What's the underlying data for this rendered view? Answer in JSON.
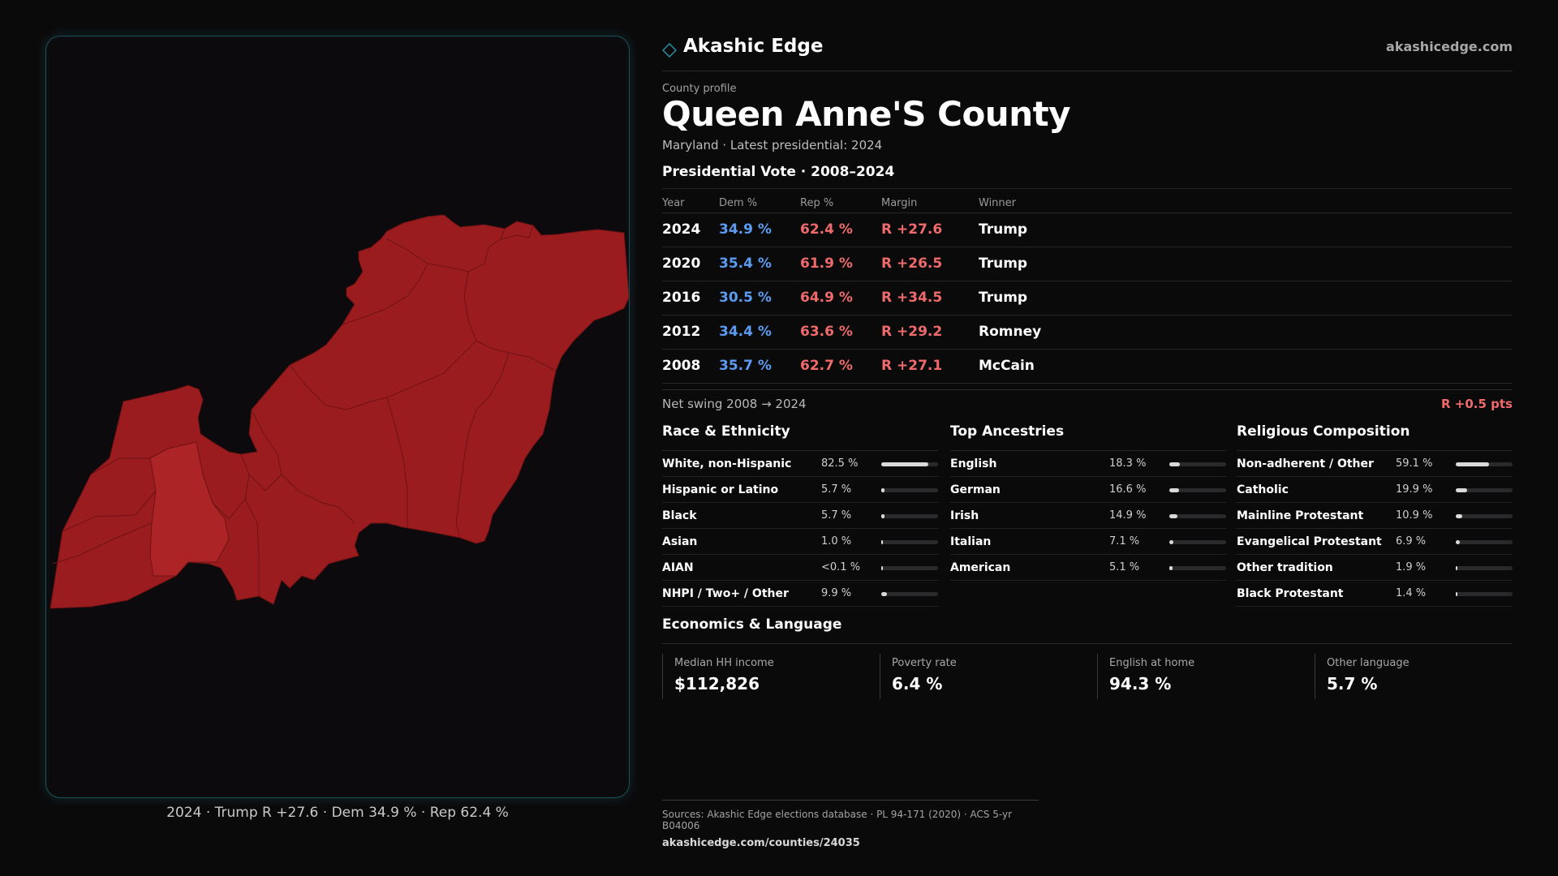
{
  "header": {
    "brand": "Akashic Edge",
    "site": "akashicedge.com",
    "logo_icon": "diamond-icon"
  },
  "profile": {
    "kicker": "County profile",
    "title": "Queen Anne'S County",
    "subtitle": "Maryland · Latest presidential: 2024"
  },
  "vote": {
    "heading": "Presidential Vote · 2008–2024",
    "columns": {
      "year": "Year",
      "dem": "Dem %",
      "rep": "Rep %",
      "margin": "Margin",
      "winner": "Winner"
    },
    "rows": [
      {
        "year": "2024",
        "dem": "34.9 %",
        "rep": "62.4 %",
        "margin": "R +27.6",
        "winner": "Trump"
      },
      {
        "year": "2020",
        "dem": "35.4 %",
        "rep": "61.9 %",
        "margin": "R +26.5",
        "winner": "Trump"
      },
      {
        "year": "2016",
        "dem": "30.5 %",
        "rep": "64.9 %",
        "margin": "R +34.5",
        "winner": "Trump"
      },
      {
        "year": "2012",
        "dem": "34.4 %",
        "rep": "63.6 %",
        "margin": "R +29.2",
        "winner": "Romney"
      },
      {
        "year": "2008",
        "dem": "35.7 %",
        "rep": "62.7 %",
        "margin": "R +27.1",
        "winner": "McCain"
      }
    ],
    "swing_label": "Net swing 2008 → 2024",
    "swing_value": "R +0.5 pts"
  },
  "race": {
    "heading": "Race & Ethnicity",
    "rows": [
      {
        "label": "White, non-Hispanic",
        "value": "82.5 %",
        "share": 0.825
      },
      {
        "label": "Hispanic or Latino",
        "value": "5.7 %",
        "share": 0.057
      },
      {
        "label": "Black",
        "value": "5.7 %",
        "share": 0.057
      },
      {
        "label": "Asian",
        "value": "1.0 %",
        "share": 0.01
      },
      {
        "label": "AIAN",
        "value": "<0.1 %",
        "share": 0.001
      },
      {
        "label": "NHPI / Two+ / Other",
        "value": "9.9 %",
        "share": 0.099
      }
    ]
  },
  "ancestry": {
    "heading": "Top Ancestries",
    "rows": [
      {
        "label": "English",
        "value": "18.3 %",
        "share": 0.183
      },
      {
        "label": "German",
        "value": "16.6 %",
        "share": 0.166
      },
      {
        "label": "Irish",
        "value": "14.9 %",
        "share": 0.149
      },
      {
        "label": "Italian",
        "value": "7.1 %",
        "share": 0.071
      },
      {
        "label": "American",
        "value": "5.1 %",
        "share": 0.051
      }
    ]
  },
  "religion": {
    "heading": "Religious Composition",
    "rows": [
      {
        "label": "Non-adherent / Other",
        "value": "59.1 %",
        "share": 0.591
      },
      {
        "label": "Catholic",
        "value": "19.9 %",
        "share": 0.199
      },
      {
        "label": "Mainline Protestant",
        "value": "10.9 %",
        "share": 0.109
      },
      {
        "label": "Evangelical Protestant",
        "value": "6.9 %",
        "share": 0.069
      },
      {
        "label": "Other tradition",
        "value": "1.9 %",
        "share": 0.019
      },
      {
        "label": "Black Protestant",
        "value": "1.4 %",
        "share": 0.014
      }
    ]
  },
  "economics": {
    "heading": "Economics & Language",
    "items": [
      {
        "label": "Median HH income",
        "value": "$112,826"
      },
      {
        "label": "Poverty rate",
        "value": "6.4 %"
      },
      {
        "label": "English at home",
        "value": "94.3 %"
      },
      {
        "label": "Other language",
        "value": "5.7 %"
      }
    ]
  },
  "map": {
    "caption": "2024 · Trump R +27.6 · Dem 34.9 % · Rep 62.4 %",
    "fill_color": "#9b1c1f",
    "highlight_color": "#ad2427",
    "border_color": "#6e1214"
  },
  "sources": {
    "line1": "Sources: Akashic Edge elections database · PL 94-171 (2020) · ACS 5-yr B04006",
    "line2": "akashicedge.com/counties/24035"
  }
}
